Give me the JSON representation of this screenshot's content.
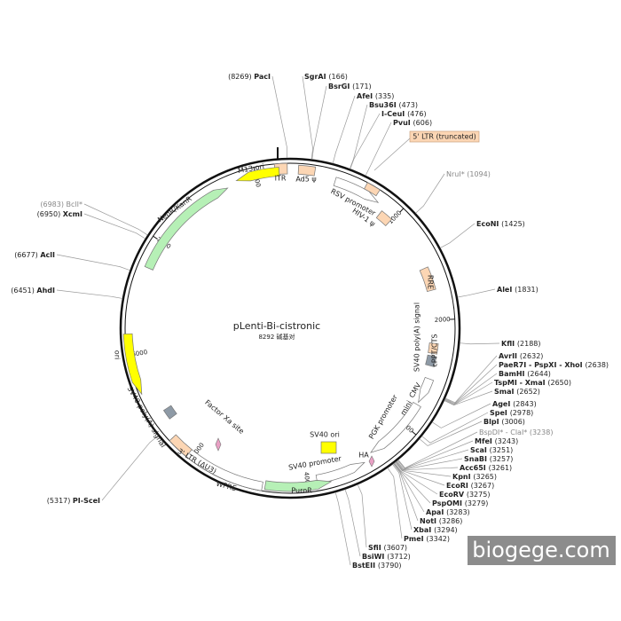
{
  "title": "pLenti-Bi-cistronic",
  "length": "8292 碱基对",
  "ticks": [
    1000,
    2000,
    3000,
    4000,
    5000,
    6000,
    7000,
    8000
  ],
  "sites": [
    {
      "name": "PacI",
      "position": "(8269)"
    },
    {
      "name": "SgrAI",
      "position": "(166)"
    },
    {
      "name": "BsrGI",
      "position": "(171)"
    },
    {
      "name": "AfeI",
      "position": "(335)"
    },
    {
      "name": "Bsu36I",
      "position": "(473)"
    },
    {
      "name": "I-CeuI",
      "position": "(476)"
    },
    {
      "name": "PvuI",
      "position": "(606)"
    },
    {
      "name": "NruI*",
      "position": "(1094)"
    },
    {
      "name": "EcoNI",
      "position": "(1425)"
    },
    {
      "name": "AleI",
      "position": "(1831)"
    },
    {
      "name": "KflI",
      "position": "(2188)"
    },
    {
      "name": "AvrII",
      "position": "(2632)"
    },
    {
      "name": "PaeR7I - PspXI - XhoI",
      "position": "(2638)"
    },
    {
      "name": "BamHI",
      "position": "(2644)"
    },
    {
      "name": "TspMI - XmaI",
      "position": "(2650)"
    },
    {
      "name": "SmaI",
      "position": "(2652)"
    },
    {
      "name": "AgeI",
      "position": "(2843)"
    },
    {
      "name": "SpeI",
      "position": "(2978)"
    },
    {
      "name": "BlpI",
      "position": "(3006)"
    },
    {
      "name": "BspDI* - ClaI*",
      "position": "(3238)"
    },
    {
      "name": "MfeI",
      "position": "(3243)"
    },
    {
      "name": "ScaI",
      "position": "(3251)"
    },
    {
      "name": "SnaBI",
      "position": "(3257)"
    },
    {
      "name": "Acc65I",
      "position": "(3261)"
    },
    {
      "name": "KpnI",
      "position": "(3265)"
    },
    {
      "name": "EcoRI",
      "position": "(3267)"
    },
    {
      "name": "EcoRV",
      "position": "(3275)"
    },
    {
      "name": "PspOMI",
      "position": "(3279)"
    },
    {
      "name": "ApaI",
      "position": "(3283)"
    },
    {
      "name": "NotI",
      "position": "(3286)"
    },
    {
      "name": "XbaI",
      "position": "(3294)"
    },
    {
      "name": "PmeI",
      "position": "(3342)"
    },
    {
      "name": "SfiI",
      "position": "(3607)"
    },
    {
      "name": "BsiWI",
      "position": "(3712)"
    },
    {
      "name": "BstEII",
      "position": "(3790)"
    },
    {
      "name": "PI-SceI",
      "position": "(5317)"
    },
    {
      "name": "AhdI",
      "position": "(6451)"
    },
    {
      "name": "AclI",
      "position": "(6677)"
    },
    {
      "name": "XcmI",
      "position": "(6950)"
    },
    {
      "name": "BclI*",
      "position": "(6983)"
    }
  ],
  "features": [
    "ITR",
    "Ad5 ψ",
    "RSV promoter",
    "HIV-1 ψ",
    "5' LTR (truncated)",
    "RRE",
    "SV40 poly(A) signal",
    "cPPT/CTS",
    "CMV",
    "mini",
    "PGK promoter",
    "HA",
    "SV40 ori",
    "SV40 promoter",
    "PuroR",
    "WPRE",
    "3' LTR (ΔU3)",
    "Factor Xa site",
    "SV40 poly(A) signal",
    "ori",
    "NeoR/KanR",
    "M13 ori"
  ],
  "watermark": "biogege.com"
}
